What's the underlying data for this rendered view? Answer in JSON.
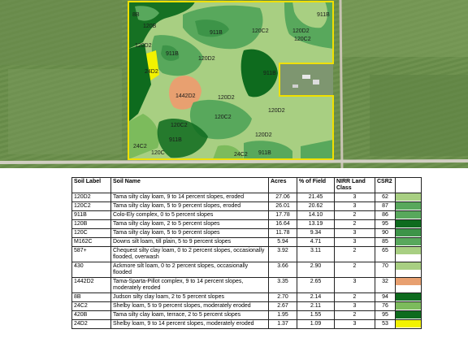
{
  "map": {
    "unit_labels": [
      "8B",
      "120B",
      "120D2",
      "911B",
      "911B",
      "120C2",
      "120C2",
      "911B",
      "120D2",
      "120D2",
      "24D2",
      "1442D2",
      "120D2",
      "911B",
      "120D2",
      "120C2",
      "120C2",
      "120D2",
      "24C2",
      "120C",
      "911B",
      "24C2",
      "911B"
    ]
  },
  "table": {
    "headers": [
      "Soil Label",
      "Soil Name",
      "Acres",
      "% of Field",
      "NIRR Land Class",
      "CSR2",
      ""
    ],
    "rows": [
      {
        "label": "120D2",
        "name": "Tama silty clay loam, 9 to 14 percent slopes, eroded",
        "acres": "27.06",
        "pct": "21.45",
        "nirr": "3",
        "csr2": "62",
        "color": "#a8cf82"
      },
      {
        "label": "120C2",
        "name": "Tama silty clay loam, 5 to 9 percent slopes, eroded",
        "acres": "26.01",
        "pct": "20.62",
        "nirr": "3",
        "csr2": "87",
        "color": "#58a85c"
      },
      {
        "label": "911B",
        "name": "Colo-Ely complex, 0 to 5 percent slopes",
        "acres": "17.78",
        "pct": "14.10",
        "nirr": "2",
        "csr2": "86",
        "color": "#58a85c"
      },
      {
        "label": "120B",
        "name": "Tama silty clay loam, 2 to 5 percent slopes",
        "acres": "16.64",
        "pct": "13.19",
        "nirr": "2",
        "csr2": "95",
        "color": "#0e6b1e"
      },
      {
        "label": "120C",
        "name": "Tama silty clay loam, 5 to 9 percent slopes",
        "acres": "11.78",
        "pct": "9.34",
        "nirr": "3",
        "csr2": "90",
        "color": "#3d9448"
      },
      {
        "label": "M162C",
        "name": "Downs silt loam, till plain, 5 to 9 percent slopes",
        "acres": "5.94",
        "pct": "4.71",
        "nirr": "3",
        "csr2": "85",
        "color": "#58a85c"
      },
      {
        "label": "587+",
        "name": "Chequest silty clay loam, 0 to 2 percent slopes, occasionally flooded, overwash",
        "acres": "3.92",
        "pct": "3.11",
        "nirr": "2",
        "csr2": "65",
        "color": "#a8cf82"
      },
      {
        "label": "430",
        "name": "Ackmore silt loam, 0 to 2 percent slopes, occasionally flooded",
        "acres": "3.66",
        "pct": "2.90",
        "nirr": "2",
        "csr2": "70",
        "color": "#a8cf82"
      },
      {
        "label": "1442D2",
        "name": "Tama-Sparta-Pillot complex, 9 to 14 percent slopes, moderately eroded",
        "acres": "3.35",
        "pct": "2.65",
        "nirr": "3",
        "csr2": "32",
        "color": "#e8a070"
      },
      {
        "label": "8B",
        "name": "Judson silty clay loam, 2 to 5 percent slopes",
        "acres": "2.70",
        "pct": "2.14",
        "nirr": "2",
        "csr2": "94",
        "color": "#0e6b1e"
      },
      {
        "label": "24C2",
        "name": "Shelby loam, 5 to 9 percent slopes, moderately eroded",
        "acres": "2.67",
        "pct": "2.11",
        "nirr": "3",
        "csr2": "76",
        "color": "#7cbb5c"
      },
      {
        "label": "420B",
        "name": "Tama silty clay loam, terrace, 2 to 5 percent slopes",
        "acres": "1.95",
        "pct": "1.55",
        "nirr": "2",
        "csr2": "95",
        "color": "#0e6b1e"
      },
      {
        "label": "24D2",
        "name": "Shelby loam, 9 to 14 percent slopes, moderately eroded",
        "acres": "1.37",
        "pct": "1.09",
        "nirr": "3",
        "csr2": "53",
        "color": "#f2f200"
      }
    ]
  }
}
